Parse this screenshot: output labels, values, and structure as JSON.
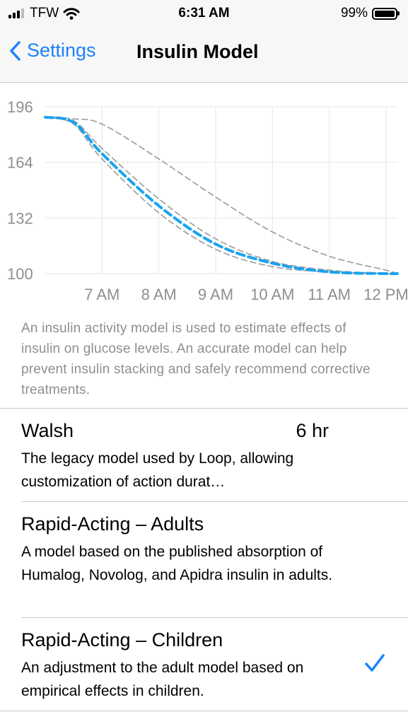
{
  "status_bar": {
    "carrier": "TFW",
    "time": "6:31 AM",
    "battery": "99%"
  },
  "nav": {
    "back_label": "Settings",
    "title": "Insulin Model",
    "accent_color": "#1a82fb"
  },
  "chart_data": {
    "type": "line",
    "y_ticks": [
      "196",
      "164",
      "132",
      "100"
    ],
    "x_ticks": [
      "7 AM",
      "8 AM",
      "9 AM",
      "10 AM",
      "11 AM",
      "12 PM"
    ],
    "ylim": [
      100,
      196
    ],
    "grid": true,
    "series": [
      {
        "style": "dashed-gray",
        "x": [
          6.0,
          6.5,
          7.0,
          8.0,
          9.0,
          10.0,
          11.0,
          12.0,
          12.2
        ],
        "y": [
          190,
          189,
          186,
          166,
          144,
          124,
          110,
          102,
          100
        ]
      },
      {
        "style": "dashed-gray",
        "x": [
          6.0,
          6.5,
          7.0,
          8.0,
          9.0,
          10.0,
          11.0,
          12.0,
          12.2
        ],
        "y": [
          190,
          188,
          172,
          143,
          120,
          107,
          102,
          100,
          100
        ]
      },
      {
        "style": "dashed-blue-selected",
        "x": [
          6.0,
          6.5,
          7.0,
          8.0,
          9.0,
          10.0,
          11.0,
          12.0,
          12.2
        ],
        "y": [
          190,
          187,
          169,
          139,
          117,
          106,
          101,
          100,
          100
        ]
      },
      {
        "style": "dashed-gray",
        "x": [
          6.0,
          6.5,
          7.0,
          8.0,
          9.0,
          10.0,
          11.0,
          12.0,
          12.2
        ],
        "y": [
          190,
          186,
          166,
          135,
          114,
          104,
          101,
          100,
          100
        ]
      }
    ]
  },
  "caption": "An insulin activity model is used to estimate effects of insulin on glucose levels. An accurate model can help prevent insulin stacking and safely recommend corrective treatments.",
  "models": [
    {
      "name": "Walsh",
      "value": "6 hr",
      "description": "The legacy model used by Loop, allowing customization of action durat…",
      "selected": false
    },
    {
      "name": "Rapid-Acting – Adults",
      "value": "",
      "description": "A model based on the published absorption of Humalog, Novolog, and Apidra insulin in adults.",
      "selected": false
    },
    {
      "name": "Rapid-Acting – Children",
      "value": "",
      "description": "An adjustment to the adult model based on empirical effects in children.",
      "selected": true
    }
  ]
}
